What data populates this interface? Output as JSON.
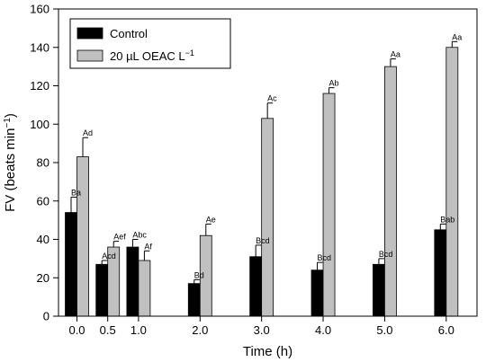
{
  "chart_data": {
    "type": "bar",
    "xlabel": "Time (h)",
    "ylabel": "FV (beats min",
    "ylabel_sup": "−1",
    "ylabel_suffix": ")",
    "xlim": [
      -0.3,
      6.5
    ],
    "ylim": [
      0,
      160
    ],
    "yticks": [
      0,
      20,
      40,
      60,
      80,
      100,
      120,
      140,
      160
    ],
    "categories": [
      "0.0",
      "0.5",
      "1.0",
      "2.0",
      "3.0",
      "4.0",
      "5.0",
      "6.0"
    ],
    "x": [
      0.0,
      0.5,
      1.0,
      2.0,
      3.0,
      4.0,
      5.0,
      6.0
    ],
    "series": [
      {
        "name": "Control",
        "color": "#000000",
        "values": [
          54,
          27,
          36,
          17,
          31,
          24,
          27,
          45
        ],
        "errors": [
          8,
          2,
          4,
          2,
          6,
          4,
          3,
          3
        ],
        "labels": [
          "Ba",
          "Acd",
          "Abc",
          "Bd",
          "Bcd",
          "Bcd",
          "Bcd",
          "Bab"
        ]
      },
      {
        "name": "20 µL OEAC L",
        "name_sup": "−1",
        "color": "#c0c0c0",
        "values": [
          83,
          36,
          29,
          42,
          103,
          116,
          130,
          140
        ],
        "errors": [
          10,
          3,
          5,
          6,
          8,
          3,
          4,
          3
        ],
        "labels": [
          "Ad",
          "Aef",
          "Af",
          "Ae",
          "Ac",
          "Ab",
          "Aa",
          "Aa"
        ]
      }
    ],
    "legend_position": "top-left",
    "grid": false
  }
}
